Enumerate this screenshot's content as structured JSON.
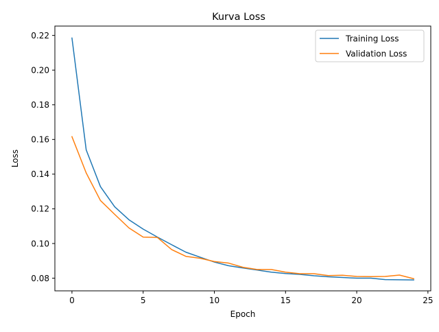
{
  "chart_data": {
    "type": "line",
    "title": "Kurva Loss",
    "xlabel": "Epoch",
    "ylabel": "Loss",
    "xlim": [
      -1.2,
      25.2
    ],
    "ylim": [
      0.0727,
      0.2254
    ],
    "x_ticks": [
      0,
      5,
      10,
      15,
      20,
      25
    ],
    "x_tick_labels": [
      "0",
      "5",
      "10",
      "15",
      "20",
      "25"
    ],
    "y_ticks": [
      0.08,
      0.1,
      0.12,
      0.14,
      0.16,
      0.18,
      0.2,
      0.22
    ],
    "y_tick_labels": [
      "0.08",
      "0.10",
      "0.12",
      "0.14",
      "0.16",
      "0.18",
      "0.20",
      "0.22"
    ],
    "grid": false,
    "legend_position": "top-right",
    "x": [
      0,
      1,
      2,
      3,
      4,
      5,
      6,
      7,
      8,
      9,
      10,
      11,
      12,
      13,
      14,
      15,
      16,
      17,
      18,
      19,
      20,
      21,
      22,
      23,
      24
    ],
    "series": [
      {
        "name": "Training Loss",
        "color": "#1f77b4",
        "values": [
          0.2185,
          0.154,
          0.1328,
          0.1212,
          0.1137,
          0.1083,
          0.1037,
          0.0993,
          0.095,
          0.0921,
          0.0893,
          0.0872,
          0.0859,
          0.0847,
          0.0835,
          0.0827,
          0.0822,
          0.0814,
          0.0808,
          0.0804,
          0.08,
          0.08,
          0.0792,
          0.0791,
          0.079
        ]
      },
      {
        "name": "Validation Loss",
        "color": "#ff7f0e",
        "values": [
          0.1616,
          0.1407,
          0.1248,
          0.1168,
          0.109,
          0.1037,
          0.1035,
          0.0965,
          0.0926,
          0.0915,
          0.0896,
          0.0887,
          0.0863,
          0.085,
          0.085,
          0.0835,
          0.0826,
          0.0826,
          0.0815,
          0.0817,
          0.081,
          0.0809,
          0.081,
          0.0818,
          0.0797
        ]
      }
    ]
  }
}
